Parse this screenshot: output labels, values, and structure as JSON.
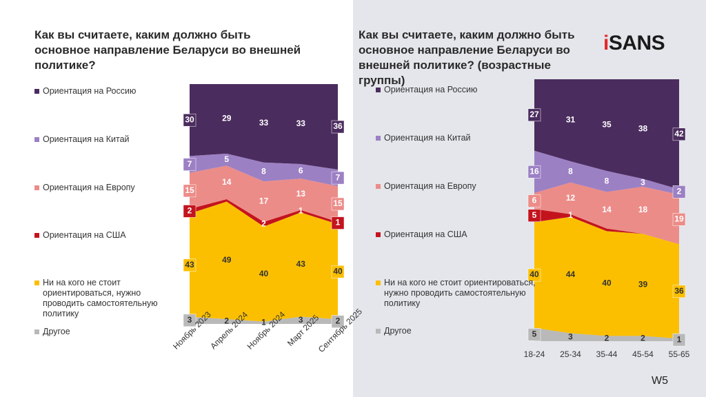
{
  "logo": "iSANS",
  "page_label": "W5",
  "chart_data": [
    {
      "type": "stacked_area_100",
      "title": "Как вы считаете, каким должно быть основное направление Беларуси во внешней политике?",
      "categories": [
        "Ноябрь 2023",
        "Апрель 2024",
        "Ноябрь 2024",
        "Март 2025",
        "Сентябрь 2025"
      ],
      "series": [
        {
          "name": "Ориентация на Россию",
          "color": "#4b2c5e",
          "values": [
            30,
            29,
            33,
            33,
            36
          ]
        },
        {
          "name": "Ориентация на Китай",
          "color": "#9c80c4",
          "values": [
            7,
            5,
            8,
            6,
            7
          ]
        },
        {
          "name": "Ориентация на Европу",
          "color": "#ec8c88",
          "values": [
            15,
            14,
            17,
            13,
            15
          ]
        },
        {
          "name": "Ориентация на США",
          "color": "#c3141e",
          "values": [
            2,
            1,
            2,
            1,
            1
          ],
          "value_labels": [
            "2",
            null,
            "2",
            "1",
            "1"
          ]
        },
        {
          "name": "Ни на кого не стоит ориентироваться, нужно проводить самостоятельную политику",
          "color": "#fbbf00",
          "values": [
            43,
            49,
            40,
            43,
            40
          ]
        },
        {
          "name": "Другое",
          "color": "#b9b9b9",
          "values": [
            3,
            2,
            1,
            3,
            2
          ]
        }
      ]
    },
    {
      "type": "stacked_area_100",
      "title": "Как вы считаете, каким должно быть основное направление Беларуси во внешней политике? (возрастные группы)",
      "categories": [
        "18-24",
        "25-34",
        "35-44",
        "45-54",
        "55-65"
      ],
      "series": [
        {
          "name": "Ориентация на Россию",
          "color": "#4b2c5e",
          "values": [
            27,
            31,
            35,
            38,
            42
          ]
        },
        {
          "name": "Ориентация на Китай",
          "color": "#9c80c4",
          "values": [
            16,
            8,
            8,
            3,
            2
          ]
        },
        {
          "name": "Ориентация на Европу",
          "color": "#ec8c88",
          "values": [
            6,
            12,
            14,
            18,
            19
          ]
        },
        {
          "name": "Ориентация на США",
          "color": "#c3141e",
          "values": [
            5,
            1,
            1,
            0,
            0
          ],
          "value_labels": [
            "5",
            "1",
            null,
            null,
            null
          ]
        },
        {
          "name": "Ни на кого не стоит ориентироваться, нужно проводить самостоятельную политику",
          "color": "#fbbf00",
          "values": [
            40,
            44,
            40,
            39,
            36
          ]
        },
        {
          "name": "Другое",
          "color": "#b9b9b9",
          "values": [
            5,
            3,
            2,
            2,
            1
          ]
        }
      ]
    }
  ]
}
